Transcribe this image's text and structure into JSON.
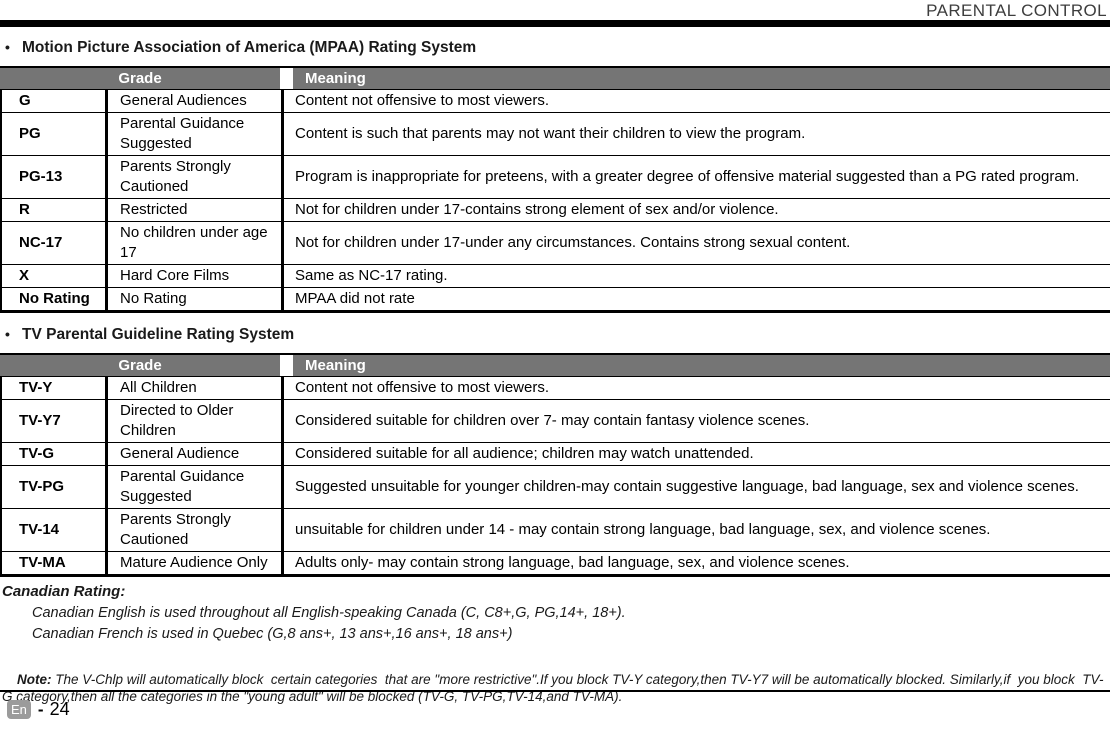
{
  "page": {
    "title": "PARENTAL CONTROL",
    "footer": {
      "language_badge": "En",
      "separator": "-",
      "page_number": "24"
    }
  },
  "colors": {
    "table_header_bg": "#757575",
    "table_header_text": "#ffffff",
    "top_bar": "#000000",
    "badge_bg": "#9b9b9b"
  },
  "sections": {
    "mpaa": {
      "bullet": "•",
      "heading": "Motion Picture Association of America (MPAA) Rating System",
      "header": {
        "grade": "Grade",
        "meaning": "Meaning"
      },
      "rows": [
        {
          "code": "G",
          "grade": "General Audiences",
          "meaning": "Content not offensive to most viewers."
        },
        {
          "code": "PG",
          "grade": "Parental Guidance Suggested",
          "meaning": "Content is such that parents may not want their children to view the program."
        },
        {
          "code": "PG-13",
          "grade": "Parents Strongly Cautioned",
          "meaning": "Program is inappropriate for preteens, with a greater degree of offensive material suggested than a PG rated program."
        },
        {
          "code": "R",
          "grade": "Restricted",
          "meaning": "Not for children under 17-contains strong element of sex and/or violence."
        },
        {
          "code": "NC-17",
          "grade": "No children under age 17",
          "meaning": "Not for children under 17-under any circumstances. Contains strong sexual content."
        },
        {
          "code": "X",
          "grade": "Hard Core Films",
          "meaning": "Same as NC-17 rating."
        },
        {
          "code": "No Rating",
          "grade": "No Rating",
          "meaning": "MPAA did not rate"
        }
      ]
    },
    "tv": {
      "bullet": "•",
      "heading": "TV Parental Guideline Rating System",
      "header": {
        "grade": "Grade",
        "meaning": "Meaning"
      },
      "rows": [
        {
          "code": "TV-Y",
          "grade": "All Children",
          "meaning": "Content not offensive to most viewers."
        },
        {
          "code": "TV-Y7",
          "grade": "Directed to Older Children",
          "meaning": "Considered suitable for children over 7- may contain fantasy violence scenes."
        },
        {
          "code": "TV-G",
          "grade": "General Audience",
          "meaning": "Considered suitable for all audience; children may watch unattended."
        },
        {
          "code": "TV-PG",
          "grade": "Parental Guidance Suggested",
          "meaning": "Suggested unsuitable for younger children-may contain suggestive language, bad language, sex and violence scenes."
        },
        {
          "code": "TV-14",
          "grade": "Parents Strongly Cautioned",
          "meaning": "unsuitable for children under 14 - may contain strong language, bad language, sex, and violence scenes."
        },
        {
          "code": "TV-MA",
          "grade": "Mature Audience Only",
          "meaning": "Adults only- may contain strong language, bad language, sex, and violence scenes."
        }
      ]
    }
  },
  "canadian_rating": {
    "title": "Canadian Rating:",
    "lines": [
      "Canadian English is used throughout all English-speaking Canada (C, C8+,G, PG,14+, 18+).",
      "Canadian French is used in Quebec (G,8 ans+, 13 ans+,16 ans+, 18 ans+)"
    ]
  },
  "note": {
    "label": "Note:",
    "text": " The V-Chlp will automatically block  certain categories  that are \"more restrictive\".If you block TV-Y category,then TV-Y7 will be automatically blocked. Similarly,if  you block  TV-G category,then all the categories in the \"young adult\" will be blocked (TV-G, TV-PG,TV-14,and TV-MA)."
  }
}
